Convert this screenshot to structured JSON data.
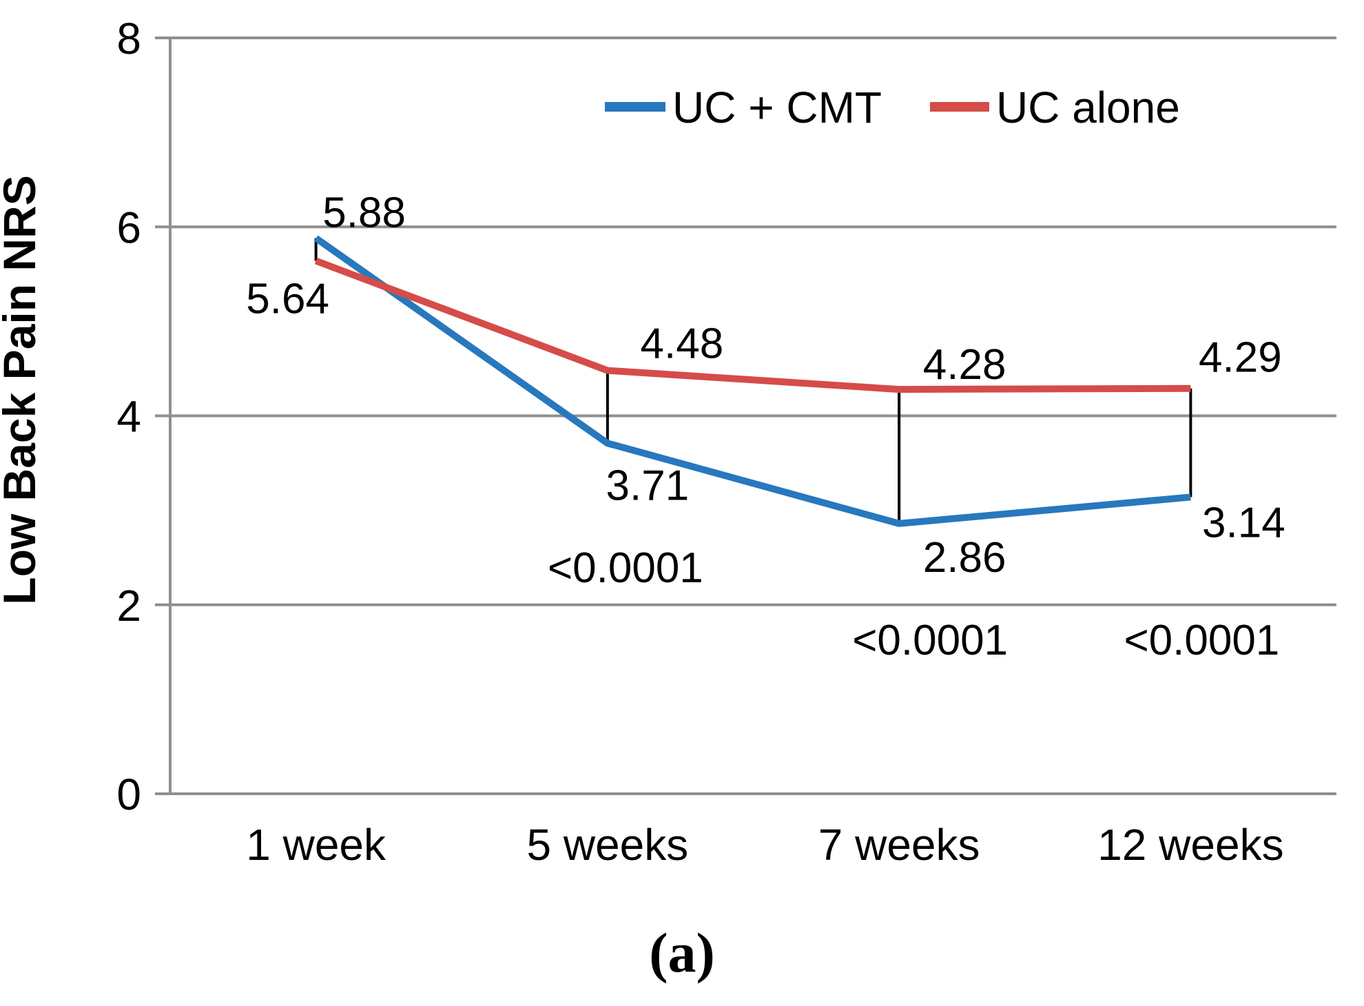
{
  "figure": {
    "caption": "(a)"
  },
  "colors": {
    "grid": "#8F8F8F",
    "text": "#000000",
    "uc_cmt_blue": "#2878BE",
    "uc_alone_red": "#D54C49",
    "connector_black": "#000000"
  },
  "chart_data": {
    "type": "line",
    "title": "",
    "xlabel": "",
    "ylabel": "Low Back Pain NRS",
    "ylim": [
      0,
      8
    ],
    "yticks": [
      8,
      6,
      4,
      2,
      0
    ],
    "grid": true,
    "legend_position": "top-right-inside",
    "categories": [
      "1 week",
      "5 weeks",
      "7 weeks",
      "12 weeks"
    ],
    "series": [
      {
        "name": "UC + CMT",
        "color": "#2878BE",
        "values": [
          5.88,
          3.71,
          2.86,
          3.14
        ]
      },
      {
        "name": "UC alone",
        "color": "#D54C49",
        "values": [
          5.64,
          4.48,
          4.28,
          4.29
        ]
      }
    ],
    "p_values": [
      "<0.0001",
      "<0.0001",
      "<0.0001"
    ],
    "p_value_categories": [
      "5 weeks",
      "7 weeks",
      "12 weeks"
    ],
    "difference_connectors": true
  }
}
